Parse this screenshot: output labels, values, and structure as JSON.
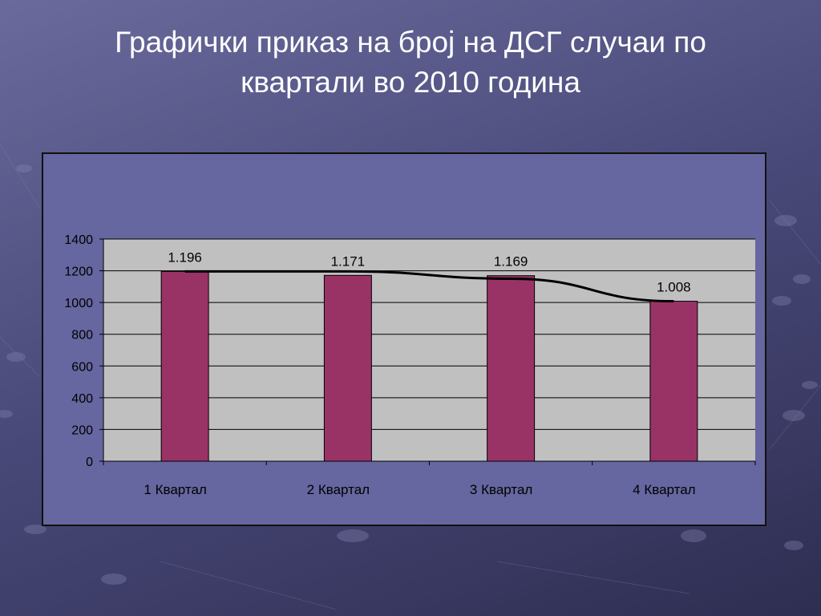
{
  "slide": {
    "title_line1": "Графички приказ на број на ДСГ случаи по",
    "title_line2": "квартали во 2010 година"
  },
  "colors": {
    "bar": "#993366",
    "plot_area": "#c0c0c0",
    "chart_area": "#6666a0",
    "trend": "#000000"
  },
  "chart_data": {
    "type": "bar",
    "categories": [
      "1 Квартал",
      "2 Квартал",
      "3 Квартал",
      "4 Квартал"
    ],
    "values": [
      1196,
      1171,
      1169,
      1008
    ],
    "data_labels": [
      "1.196",
      "1.171",
      "1.169",
      "1.008"
    ],
    "ylim": [
      0,
      1400
    ],
    "yticks": [
      0,
      200,
      400,
      600,
      800,
      1000,
      1200,
      1400
    ],
    "grid": true,
    "legend": "none",
    "trend_line": {
      "type": "line",
      "values": [
        1196,
        1196,
        1150,
        1008
      ]
    }
  }
}
